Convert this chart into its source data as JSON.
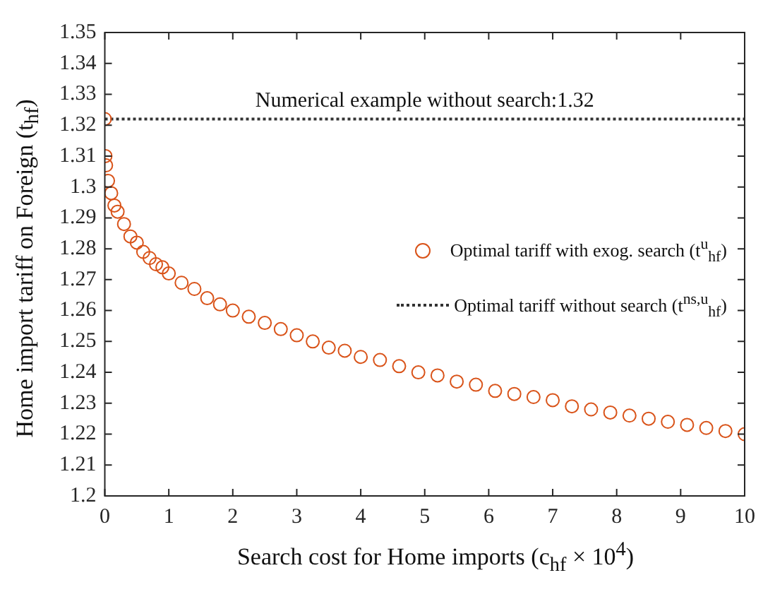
{
  "chart_data": {
    "type": "scatter",
    "xlabel": "Search cost for Home imports (c$_{hf}$ × 10$^{4}$)",
    "ylabel": "Home import tariff on Foreign (t$_{hf}$)",
    "xlim": [
      0,
      10
    ],
    "xticks": [
      0,
      1,
      2,
      3,
      4,
      5,
      6,
      7,
      8,
      9,
      10
    ],
    "ylim": [
      1.2,
      1.35
    ],
    "yticks": [
      1.2,
      1.21,
      1.22,
      1.23,
      1.24,
      1.25,
      1.26,
      1.27,
      1.28,
      1.29,
      1.3,
      1.31,
      1.32,
      1.33,
      1.34,
      1.35
    ],
    "grid": false,
    "legend": "right",
    "series": [
      {
        "name": "Optimal tariff with exog. search (t$^{u}$$_{hf}$)",
        "type": "scatter",
        "marker": "circle",
        "color": "#d95319",
        "x": [
          0,
          0.01,
          0.02,
          0.05,
          0.1,
          0.15,
          0.2,
          0.3,
          0.4,
          0.5,
          0.6,
          0.7,
          0.8,
          0.9,
          1,
          1.2,
          1.4,
          1.6,
          1.8,
          2,
          2.25,
          2.5,
          2.75,
          3,
          3.25,
          3.5,
          3.75,
          4,
          4.3,
          4.6,
          4.9,
          5.2,
          5.5,
          5.8,
          6.1,
          6.4,
          6.7,
          7,
          7.3,
          7.6,
          7.9,
          8.2,
          8.5,
          8.8,
          9.1,
          9.4,
          9.7,
          10
        ],
        "values": [
          1.322,
          1.31,
          1.307,
          1.302,
          1.298,
          1.294,
          1.292,
          1.288,
          1.284,
          1.282,
          1.279,
          1.277,
          1.275,
          1.274,
          1.272,
          1.269,
          1.267,
          1.264,
          1.262,
          1.26,
          1.258,
          1.256,
          1.254,
          1.252,
          1.25,
          1.248,
          1.247,
          1.245,
          1.244,
          1.242,
          1.24,
          1.239,
          1.237,
          1.236,
          1.234,
          1.233,
          1.232,
          1.231,
          1.229,
          1.228,
          1.227,
          1.226,
          1.225,
          1.224,
          1.223,
          1.222,
          1.221,
          1.22
        ]
      },
      {
        "name": "Optimal tariff without search (t$^{ns,u}$$_{hf}$)",
        "type": "line",
        "marker": "none",
        "line_style": "dotted",
        "color": "#333333",
        "x": [
          0,
          10
        ],
        "values": [
          1.322,
          1.322
        ]
      }
    ],
    "annotations": [
      {
        "text": "Numerical example without search:1.32",
        "x": 5,
        "y": 1.322
      }
    ]
  }
}
